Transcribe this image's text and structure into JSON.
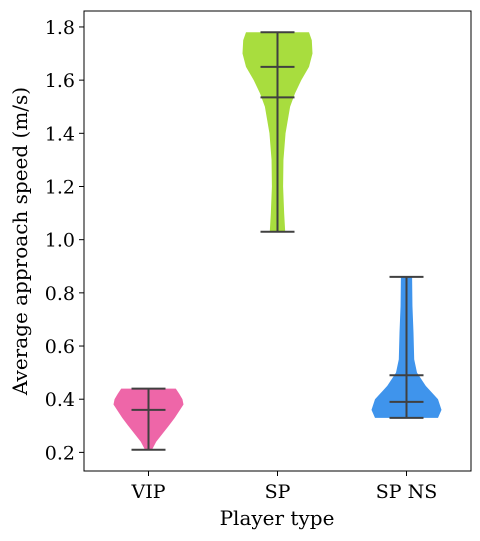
{
  "chart_data": {
    "type": "violin",
    "xlabel": "Player type",
    "ylabel": "Average approach speed (m/s)",
    "ylim": [
      0.13,
      1.86
    ],
    "yticks": [
      "0.2",
      "0.4",
      "0.6",
      "0.8",
      "1.0",
      "1.2",
      "1.4",
      "1.6",
      "1.8"
    ],
    "grid": false,
    "categories": [
      "VIP",
      "SP",
      "SP NS"
    ],
    "series": [
      {
        "color": "#ee66a8",
        "min": 0.21,
        "max": 0.44,
        "median": 0.36,
        "profile": [
          [
            0.21,
            0.1
          ],
          [
            0.24,
            0.22
          ],
          [
            0.27,
            0.4
          ],
          [
            0.3,
            0.58
          ],
          [
            0.33,
            0.75
          ],
          [
            0.36,
            0.9
          ],
          [
            0.38,
            1.0
          ],
          [
            0.4,
            0.97
          ],
          [
            0.42,
            0.88
          ],
          [
            0.44,
            0.78
          ]
        ]
      },
      {
        "color": "#a8dd3e",
        "min": 1.03,
        "max": 1.78,
        "median": 1.65,
        "median2": 1.535,
        "profile": [
          [
            1.03,
            0.22
          ],
          [
            1.1,
            0.19
          ],
          [
            1.2,
            0.16
          ],
          [
            1.3,
            0.17
          ],
          [
            1.4,
            0.23
          ],
          [
            1.5,
            0.36
          ],
          [
            1.55,
            0.5
          ],
          [
            1.6,
            0.68
          ],
          [
            1.65,
            0.9
          ],
          [
            1.7,
            1.0
          ],
          [
            1.75,
            0.98
          ],
          [
            1.78,
            0.9
          ]
        ]
      },
      {
        "color": "#3f94ec",
        "min": 0.33,
        "max": 0.86,
        "median": 0.49,
        "median2": 0.39,
        "profile": [
          [
            0.33,
            0.9
          ],
          [
            0.36,
            1.0
          ],
          [
            0.4,
            0.9
          ],
          [
            0.45,
            0.55
          ],
          [
            0.5,
            0.3
          ],
          [
            0.55,
            0.22
          ],
          [
            0.65,
            0.2
          ],
          [
            0.75,
            0.17
          ],
          [
            0.86,
            0.16
          ]
        ]
      }
    ]
  }
}
